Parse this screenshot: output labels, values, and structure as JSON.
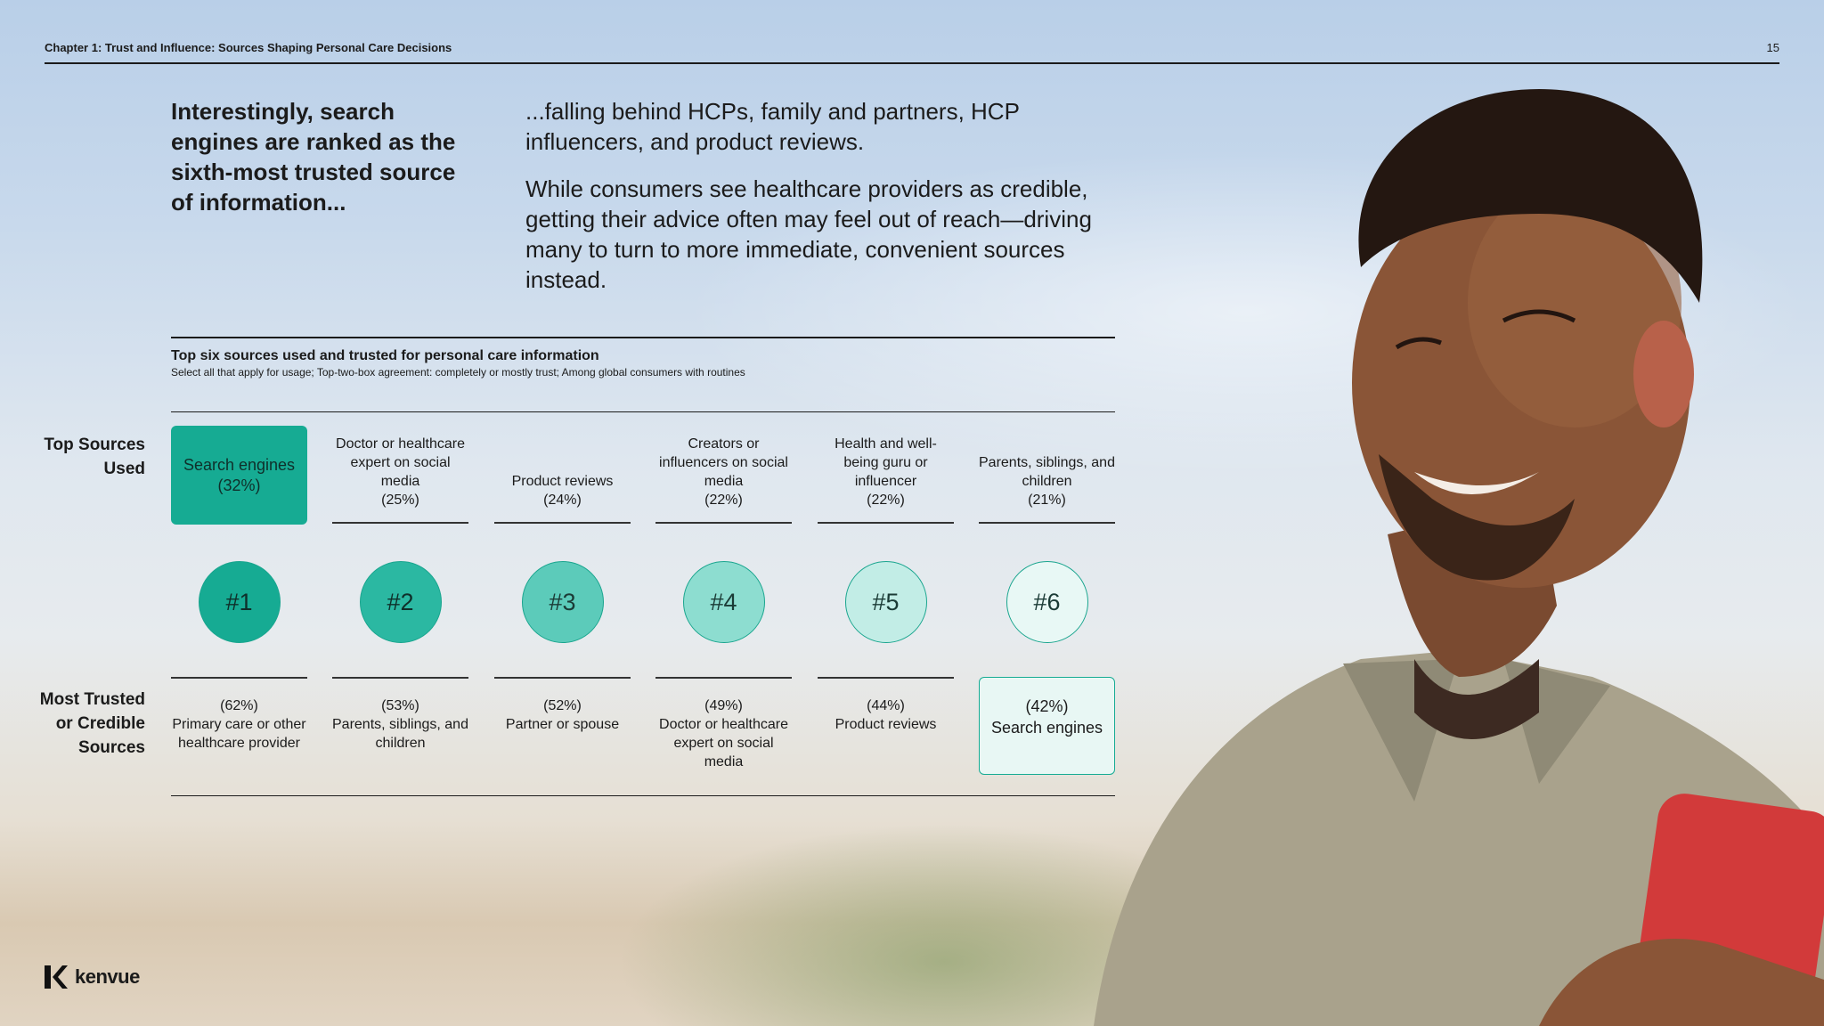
{
  "header": {
    "title": "Chapter 1: Trust and Influence: Sources Shaping Personal Care Decisions",
    "page_number": "15"
  },
  "lead": "Interestingly, search engines are ranked as the sixth-most trusted source of information...",
  "body": {
    "paragraph1": "...falling behind HCPs, family and partners, HCP influencers, and product reviews.",
    "paragraph2": "While consumers see healthcare providers as credible, getting their advice often may feel out of reach—driving many to turn to more immediate, convenient sources instead."
  },
  "chart": {
    "title": "Top six sources used and trusted for personal care information",
    "subtitle": "Select all that apply for usage; Top-two-box agreement: completely or mostly trust; Among global consumers with routines",
    "row_label_used": "Top Sources Used",
    "row_label_trusted": "Most Trusted or Credible Sources"
  },
  "chart_data": {
    "type": "table",
    "title": "Top six sources used and trusted for personal care information",
    "ranks": [
      "#1",
      "#2",
      "#3",
      "#4",
      "#5",
      "#6"
    ],
    "top_sources_used": [
      {
        "label": "Search engines",
        "pct": "(32%)",
        "value": 32
      },
      {
        "label": "Doctor or healthcare expert on social media",
        "pct": "(25%)",
        "value": 25
      },
      {
        "label": "Product reviews",
        "pct": "(24%)",
        "value": 24
      },
      {
        "label": "Creators or influencers on social media",
        "pct": "(22%)",
        "value": 22
      },
      {
        "label": "Health and well-being guru or influencer",
        "pct": "(22%)",
        "value": 22
      },
      {
        "label": "Parents, siblings, and children",
        "pct": "(21%)",
        "value": 21
      }
    ],
    "most_trusted_sources": [
      {
        "label": "Primary care or other healthcare provider",
        "pct": "(62%)",
        "value": 62
      },
      {
        "label": "Parents, siblings, and children",
        "pct": "(53%)",
        "value": 53
      },
      {
        "label": "Partner or spouse",
        "pct": "(52%)",
        "value": 52
      },
      {
        "label": "Doctor or healthcare expert on social media",
        "pct": "(49%)",
        "value": 49
      },
      {
        "label": "Product reviews",
        "pct": "(44%)",
        "value": 44
      },
      {
        "label": "Search engines",
        "pct": "(42%)",
        "value": 42
      }
    ]
  },
  "colors": {
    "accent": "#16ab93",
    "rank_fills": [
      "#16ab93",
      "#2bb8a2",
      "#5ccbba",
      "#8dddd0",
      "#c2ede6",
      "#e8f8f5"
    ]
  },
  "logo": {
    "text": "kenvue"
  }
}
